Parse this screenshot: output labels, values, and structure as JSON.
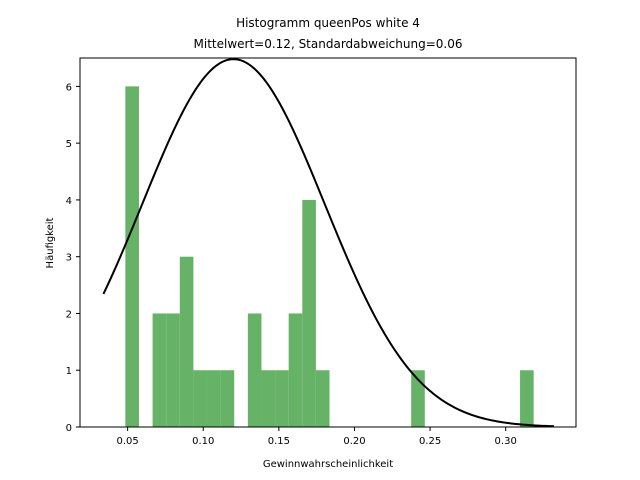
{
  "chart_data": {
    "type": "bar",
    "title_line1": "Histogramm queenPos white 4",
    "title_line2": "Mittelwert=0.12, Standardabweichung=0.06",
    "xlabel": "Gewinnwahrscheinlichkeit",
    "ylabel": "Häufigkeit",
    "xlim": [
      0.0185,
      0.3465
    ],
    "ylim": [
      0,
      6.5
    ],
    "xticks": [
      0.05,
      0.1,
      0.15,
      0.2,
      0.25,
      0.3
    ],
    "xtick_labels": [
      "0.05",
      "0.10",
      "0.15",
      "0.20",
      "0.25",
      "0.30"
    ],
    "yticks": [
      0,
      1,
      2,
      3,
      4,
      5,
      6
    ],
    "ytick_labels": [
      "0",
      "1",
      "2",
      "3",
      "4",
      "5",
      "6"
    ],
    "bar_color": "#66b266",
    "curve_color": "#000000",
    "bins": [
      {
        "x0": 0.0485,
        "x1": 0.0575,
        "count": 6
      },
      {
        "x0": 0.0665,
        "x1": 0.0755,
        "count": 2
      },
      {
        "x0": 0.0755,
        "x1": 0.0845,
        "count": 2
      },
      {
        "x0": 0.0845,
        "x1": 0.0935,
        "count": 3
      },
      {
        "x0": 0.0935,
        "x1": 0.1025,
        "count": 1
      },
      {
        "x0": 0.1025,
        "x1": 0.1115,
        "count": 1
      },
      {
        "x0": 0.1115,
        "x1": 0.1205,
        "count": 1
      },
      {
        "x0": 0.1295,
        "x1": 0.1385,
        "count": 2
      },
      {
        "x0": 0.1385,
        "x1": 0.1475,
        "count": 1
      },
      {
        "x0": 0.1475,
        "x1": 0.1565,
        "count": 1
      },
      {
        "x0": 0.1565,
        "x1": 0.1655,
        "count": 2
      },
      {
        "x0": 0.1655,
        "x1": 0.1745,
        "count": 4
      },
      {
        "x0": 0.1745,
        "x1": 0.1835,
        "count": 1
      },
      {
        "x0": 0.2375,
        "x1": 0.2465,
        "count": 1
      },
      {
        "x0": 0.3095,
        "x1": 0.3185,
        "count": 1
      }
    ],
    "normal_curve": {
      "mean": 0.12,
      "std": 0.0603,
      "peak": 6.48,
      "x_start": 0.034,
      "x_end": 0.332
    }
  }
}
